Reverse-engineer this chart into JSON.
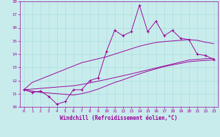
{
  "xlabel": "Windchill (Refroidissement éolien,°C)",
  "bg_color": "#c8ecec",
  "line_color": "#990099",
  "x_data": [
    0,
    1,
    2,
    3,
    4,
    5,
    6,
    7,
    8,
    9,
    10,
    11,
    12,
    13,
    14,
    15,
    16,
    17,
    18,
    19,
    20,
    21,
    22,
    23
  ],
  "y_main": [
    11.3,
    11.1,
    11.2,
    10.8,
    10.2,
    10.4,
    11.3,
    11.3,
    12.0,
    12.2,
    14.2,
    15.8,
    15.4,
    15.7,
    17.7,
    15.7,
    16.5,
    15.4,
    15.8,
    15.2,
    15.1,
    14.0,
    13.9,
    13.6
  ],
  "y_line1": [
    11.3,
    11.85,
    12.1,
    12.35,
    12.6,
    12.85,
    13.1,
    13.35,
    13.5,
    13.65,
    13.8,
    14.0,
    14.2,
    14.4,
    14.6,
    14.75,
    14.88,
    14.95,
    15.0,
    15.05,
    15.1,
    15.05,
    14.9,
    14.8
  ],
  "y_line2": [
    11.3,
    11.35,
    11.4,
    11.45,
    11.5,
    11.55,
    11.6,
    11.7,
    11.82,
    11.95,
    12.08,
    12.22,
    12.36,
    12.5,
    12.65,
    12.8,
    12.95,
    13.1,
    13.25,
    13.4,
    13.55,
    13.6,
    13.65,
    13.68
  ],
  "y_line3": [
    11.3,
    11.2,
    11.1,
    11.05,
    11.0,
    10.95,
    10.9,
    11.0,
    11.15,
    11.35,
    11.6,
    11.85,
    12.05,
    12.28,
    12.5,
    12.7,
    12.88,
    13.05,
    13.18,
    13.3,
    13.42,
    13.48,
    13.52,
    13.56
  ],
  "ylim": [
    10.0,
    18.0
  ],
  "xlim": [
    -0.5,
    23.5
  ],
  "yticks": [
    10,
    11,
    12,
    13,
    14,
    15,
    16,
    17,
    18
  ],
  "xticks": [
    0,
    1,
    2,
    3,
    4,
    5,
    6,
    7,
    8,
    9,
    10,
    11,
    12,
    13,
    14,
    15,
    16,
    17,
    18,
    19,
    20,
    21,
    22,
    23
  ],
  "grid_color": "#aadddd",
  "font_color": "#990099"
}
